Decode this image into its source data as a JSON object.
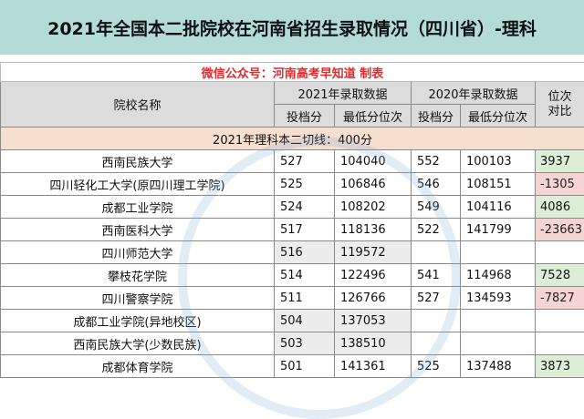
{
  "title": "2021年全国本二批院校在河南省招生录取情况（四川省）-理科",
  "note": "微信公众号：河南高考早知道 制表",
  "headers": {
    "school": "院校名称",
    "y2021": "2021年录取数据",
    "y2020": "2020年录取数据",
    "rank_compare_line1": "位次",
    "rank_compare_line2": "对比",
    "sub_score": "投档分",
    "sub_rank": "最低分位次",
    "sub_score_2020": "投档分",
    "sub_rank_2020": "最低分位次"
  },
  "cutline": "2021年理科本二切线：400分",
  "rows": [
    {
      "school": "西南民族大学",
      "s21": "527",
      "r21": "104040",
      "s20": "552",
      "r20": "100103",
      "diff": "3937",
      "sign": "pos"
    },
    {
      "school": "四川轻化工大学(原四川理工学院)",
      "s21": "525",
      "r21": "106846",
      "s20": "546",
      "r20": "108151",
      "diff": "-1305",
      "sign": "neg"
    },
    {
      "school": "成都工业学院",
      "s21": "524",
      "r21": "108202",
      "s20": "549",
      "r20": "104116",
      "diff": "4086",
      "sign": "pos"
    },
    {
      "school": "西南医科大学",
      "s21": "517",
      "r21": "118136",
      "s20": "522",
      "r20": "141799",
      "diff": "-23663",
      "sign": "neg"
    },
    {
      "school": "四川师范大学",
      "s21": "516",
      "r21": "119572",
      "s20": "",
      "r20": "",
      "diff": "",
      "sign": "none"
    },
    {
      "school": "攀枝花学院",
      "s21": "514",
      "r21": "122496",
      "s20": "541",
      "r20": "114968",
      "diff": "7528",
      "sign": "pos"
    },
    {
      "school": "四川警察学院",
      "s21": "511",
      "r21": "126766",
      "s20": "527",
      "r20": "134593",
      "diff": "-7827",
      "sign": "neg"
    },
    {
      "school": "成都工业学院(异地校区)",
      "s21": "504",
      "r21": "137053",
      "s20": "",
      "r20": "",
      "diff": "",
      "sign": "none"
    },
    {
      "school": "西南民族大学(少数民族)",
      "s21": "503",
      "r21": "138510",
      "s20": "",
      "r20": "",
      "diff": "",
      "sign": "none"
    },
    {
      "school": "成都体育学院",
      "s21": "501",
      "r21": "141361",
      "s20": "525",
      "r20": "137488",
      "diff": "3873",
      "sign": "pos"
    }
  ],
  "colors": {
    "title_bg": "#b3dcd6",
    "note": "#e8272a",
    "cutline_bg": "#f7dfcf",
    "pos_bg": "#ddeed6",
    "neg_bg": "#f5d4d4"
  }
}
